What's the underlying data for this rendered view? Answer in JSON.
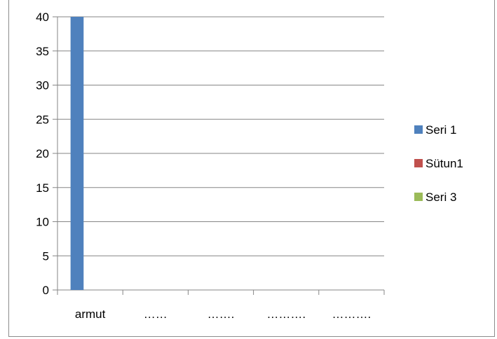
{
  "chart_data": {
    "type": "bar",
    "categories": [
      "armut",
      "……",
      "…….",
      "……….",
      "………."
    ],
    "series": [
      {
        "name": "Seri 1",
        "values": [
          40,
          null,
          null,
          null,
          null
        ],
        "color": "#4f81bd"
      },
      {
        "name": "Sütun1",
        "values": [
          null,
          null,
          null,
          null,
          null
        ],
        "color": "#c0504d"
      },
      {
        "name": "Seri 3",
        "values": [
          null,
          null,
          null,
          null,
          null
        ],
        "color": "#9bbb59"
      }
    ],
    "ylim": [
      0,
      40
    ],
    "yticks": [
      "0",
      "5",
      "10",
      "15",
      "20",
      "25",
      "30",
      "35",
      "40"
    ],
    "grid": true,
    "legend": "right",
    "gridline_color": "#868686"
  }
}
